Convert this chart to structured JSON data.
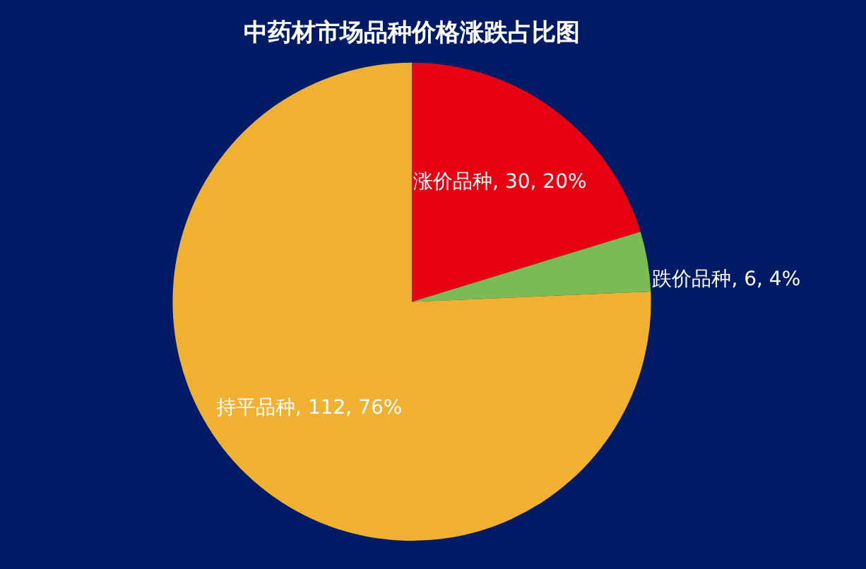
{
  "chart_data": {
    "type": "pie",
    "title": "中药材市场品种价格涨跌占比图",
    "categories": [
      "涨价品种",
      "跌价品种",
      "持平品种"
    ],
    "values": [
      30,
      6,
      112
    ],
    "colors": [
      "#e60012",
      "#7cba55",
      "#f0b132"
    ],
    "value_labels": [
      "30, 20%",
      "6, 4%",
      "112, 76%"
    ],
    "legend": false
  }
}
